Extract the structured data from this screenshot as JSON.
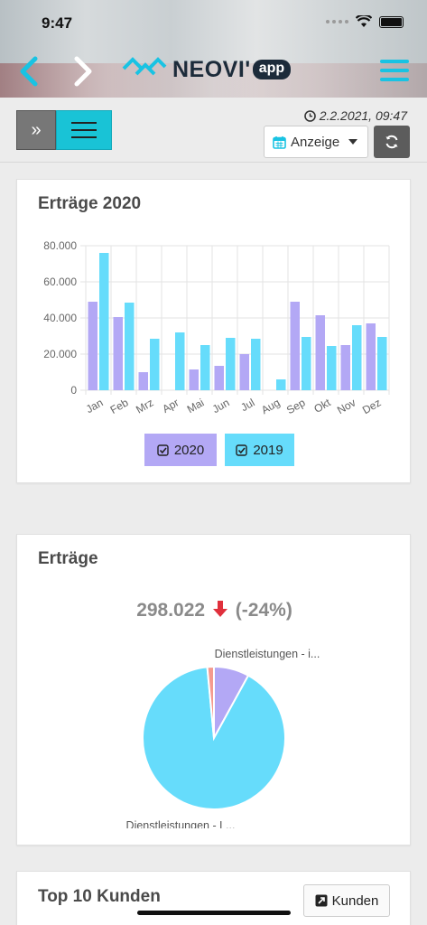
{
  "status_bar": {
    "time": "9:47"
  },
  "header": {
    "logo_text": "NEOVI'",
    "logo_app": "app"
  },
  "toolbar": {
    "expand_label": "»",
    "datetime": "2.2.2021, 09:47",
    "view_select": "Anzeige"
  },
  "cards": {
    "bar_title": "Erträge 2020",
    "pie_title": "Erträge",
    "top_title": "Top 10 Kunden",
    "kunden_button": "Kunden"
  },
  "kpi": {
    "value": "298.022",
    "change": "(-24%)"
  },
  "legend": {
    "a": "2020",
    "b": "2019"
  },
  "pie_labels": {
    "top": "Dienstleistungen - i...",
    "bottom": "Dienstleistungen - L..."
  },
  "colors": {
    "accent": "#19c3e3",
    "series_2020": "#b3a8f5",
    "series_2019": "#66dcfb",
    "slice_red": "#f59a8e",
    "down_arrow": "#e0303c"
  },
  "chart_data": [
    {
      "type": "bar",
      "title": "Erträge 2020",
      "categories": [
        "Jan",
        "Feb",
        "Mrz",
        "Apr",
        "Mai",
        "Jun",
        "Jul",
        "Aug",
        "Sep",
        "Okt",
        "Nov",
        "Dez"
      ],
      "series": [
        {
          "name": "2020",
          "values": [
            49000,
            40500,
            10000,
            0,
            11500,
            13500,
            20000,
            0,
            49000,
            41500,
            25000,
            37000
          ]
        },
        {
          "name": "2019",
          "values": [
            76000,
            48500,
            28500,
            32000,
            25000,
            29000,
            28500,
            6000,
            29500,
            24500,
            36000,
            29500
          ]
        }
      ],
      "ylim": [
        0,
        80000
      ],
      "yticks": [
        "0",
        "20.000",
        "40.000",
        "60.000",
        "80.000"
      ],
      "grid": true,
      "legend": "bottom"
    },
    {
      "type": "pie",
      "title": "Erträge",
      "slices": [
        {
          "label": "Dienstleistungen - i...",
          "value": 8
        },
        {
          "label": "Dienstleistungen - L...",
          "value": 90.5
        },
        {
          "label": "",
          "value": 1.5
        }
      ]
    }
  ]
}
